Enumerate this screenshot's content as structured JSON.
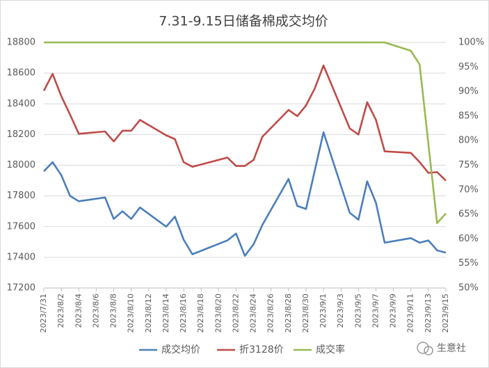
{
  "chart_data": {
    "type": "line",
    "title": "7.31-9.15日储备棉成交均价",
    "x": [
      "2023/7/31",
      "2023/8/1",
      "2023/8/2",
      "2023/8/3",
      "2023/8/4",
      "2023/8/7",
      "2023/8/8",
      "2023/8/9",
      "2023/8/10",
      "2023/8/11",
      "2023/8/14",
      "2023/8/15",
      "2023/8/16",
      "2023/8/17",
      "2023/8/21",
      "2023/8/22",
      "2023/8/23",
      "2023/8/24",
      "2023/8/25",
      "2023/8/28",
      "2023/8/29",
      "2023/8/30",
      "2023/8/31",
      "2023/9/1",
      "2023/9/4",
      "2023/9/5",
      "2023/9/6",
      "2023/9/7",
      "2023/9/8",
      "2023/9/11",
      "2023/9/12",
      "2023/9/13",
      "2023/9/14",
      "2023/9/15"
    ],
    "xlim": [
      "2023/7/31",
      "2023/9/15"
    ],
    "xticks": [
      "2023/7/31",
      "2023/8/2",
      "2023/8/4",
      "2023/8/6",
      "2023/8/8",
      "2023/8/10",
      "2023/8/12",
      "2023/8/14",
      "2023/8/16",
      "2023/8/18",
      "2023/8/20",
      "2023/8/22",
      "2023/8/24",
      "2023/8/26",
      "2023/8/28",
      "2023/8/30",
      "2023/9/1",
      "2023/9/3",
      "2023/9/5",
      "2023/9/7",
      "2023/9/9",
      "2023/9/11",
      "2023/9/13",
      "2023/9/15"
    ],
    "series": [
      {
        "name": "成交均价",
        "color": "#4a7ebb",
        "values": [
          17960,
          18020,
          17935,
          17800,
          17765,
          17790,
          17650,
          17700,
          17650,
          17725,
          17600,
          17665,
          17515,
          17420,
          17510,
          17555,
          17410,
          17485,
          17610,
          17910,
          17735,
          17715,
          17965,
          18215,
          17690,
          17645,
          17895,
          17755,
          17495,
          17525,
          17495,
          17510,
          17445,
          17430
        ]
      },
      {
        "name": "折3128价",
        "color": "#be4b48",
        "values": [
          18485,
          18595,
          18450,
          18330,
          18205,
          18220,
          18155,
          18225,
          18225,
          18295,
          18195,
          18170,
          18020,
          17990,
          18050,
          17995,
          17995,
          18035,
          18185,
          18360,
          18320,
          18390,
          18500,
          18650,
          18240,
          18200,
          18410,
          18295,
          18090,
          18080,
          18020,
          17950,
          17955,
          17900
        ]
      },
      {
        "name": "成交率",
        "color": "#98b954",
        "axis": "y2",
        "values": [
          100,
          100,
          100,
          100,
          100,
          100,
          100,
          100,
          100,
          100,
          100,
          100,
          100,
          100,
          100,
          100,
          100,
          100,
          100,
          100,
          100,
          100,
          100,
          100,
          100,
          100,
          100,
          100,
          100,
          98.3,
          95.5,
          79.3,
          63.2,
          65.2
        ]
      }
    ],
    "ylim": [
      17200,
      18800
    ],
    "yticks": [
      17200,
      17400,
      17600,
      17800,
      18000,
      18200,
      18400,
      18600,
      18800
    ],
    "y2lim": [
      50,
      100
    ],
    "y2ticks": [
      {
        "value": 50,
        "label": "50%"
      },
      {
        "value": 55,
        "label": "55%"
      },
      {
        "value": 60,
        "label": "60%"
      },
      {
        "value": 65,
        "label": "65%"
      },
      {
        "value": 70,
        "label": "70%"
      },
      {
        "value": 75,
        "label": "75%"
      },
      {
        "value": 80,
        "label": "80%"
      },
      {
        "value": 85,
        "label": "85%"
      },
      {
        "value": 90,
        "label": "90%"
      },
      {
        "value": 95,
        "label": "95%"
      },
      {
        "value": 100,
        "label": "100%"
      }
    ],
    "grid": true,
    "legend": "bottom"
  },
  "watermark": "生意社"
}
